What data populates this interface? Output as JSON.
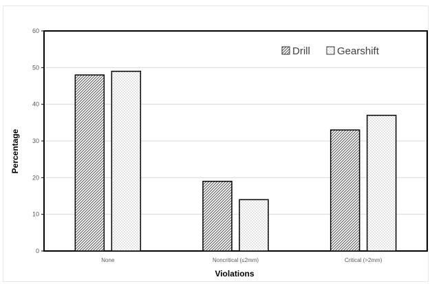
{
  "chart_data": {
    "type": "bar",
    "categories": [
      "None",
      "Noncritical (≤2mm)",
      "Critical (>2mm)"
    ],
    "series": [
      {
        "name": "Drill",
        "values": [
          48,
          19,
          33
        ],
        "pattern": "diagonal-hatch"
      },
      {
        "name": "Gearshift",
        "values": [
          49,
          14,
          37
        ],
        "pattern": "dots"
      }
    ],
    "xlabel": "Violations",
    "ylabel": "Percentage",
    "ylim": [
      0,
      60
    ],
    "yticks": [
      0,
      10,
      20,
      30,
      40,
      50,
      60
    ],
    "grid": true,
    "legend_position": "top-right"
  }
}
